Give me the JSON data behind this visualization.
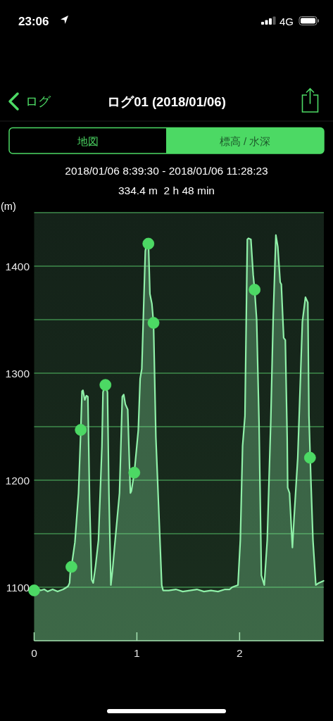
{
  "chart_data": {
    "type": "area",
    "title": "ログ01 (2018/01/06)",
    "subtitle": "2018/01/06 8:39:30 - 2018/01/06 11:28:23",
    "ylabel": "(m)",
    "annotations": [
      "334.4 m  2 h 48 min",
      "23:06",
      "4G",
      "ログ",
      "地図",
      "標高 / 水深"
    ],
    "xlim": [
      0,
      2.82
    ],
    "xticks": [
      0,
      1,
      2
    ],
    "ylim": [
      1050,
      1450
    ],
    "yticks": [
      1100,
      {
        "value": 1150,
        "label": null
      },
      1200,
      {
        "value": 1250,
        "label": null
      },
      1300,
      {
        "value": 1350,
        "label": null
      },
      1400,
      {
        "value": 1450,
        "label": null
      }
    ],
    "grid": "y",
    "line_style": "solid",
    "series": [
      {
        "color": "#8ff0a8",
        "x": [
          0,
          0.023,
          0.064,
          0.098,
          0.132,
          0.18,
          0.228,
          0.283,
          0.317,
          0.331,
          0.345,
          0.351,
          0.363,
          0.397,
          0.432,
          0.454,
          0.466,
          0.475,
          0.493,
          0.509,
          0.523,
          0.54,
          0.56,
          0.575,
          0.598,
          0.626,
          0.66,
          0.67,
          0.687,
          0.701,
          0.714,
          0.728,
          0.747,
          0.762,
          0.785,
          0.831,
          0.858,
          0.872,
          0.888,
          0.911,
          0.922,
          0.937,
          0.947,
          0.975,
          1.014,
          1.032,
          1.048,
          1.082,
          1.098,
          1.112,
          1.127,
          1.146,
          1.162,
          1.185,
          1.242,
          1.255,
          1.31,
          1.379,
          1.447,
          1.516,
          1.584,
          1.653,
          1.721,
          1.79,
          1.858,
          1.904,
          1.927,
          1.984,
          2.007,
          2.029,
          2.052,
          2.075,
          2.086,
          2.11,
          2.132,
          2.146,
          2.166,
          2.189,
          2.212,
          2.24,
          2.269,
          2.303,
          2.326,
          2.353,
          2.372,
          2.395,
          2.406,
          2.429,
          2.445,
          2.463,
          2.468,
          2.486,
          2.514,
          2.531,
          2.566,
          2.611,
          2.641,
          2.664,
          2.675,
          2.694,
          2.714,
          2.742,
          2.771,
          2.817
        ],
        "values": [
          1098,
          1099,
          1097,
          1098,
          1096,
          1098,
          1096,
          1098,
          1100,
          1101,
          1104,
          1113,
          1119,
          1142,
          1188,
          1247,
          1283,
          1284,
          1275,
          1279,
          1278,
          1180,
          1107,
          1104,
          1120,
          1144,
          1232,
          1282,
          1289,
          1288,
          1282,
          1188,
          1102,
          1115,
          1140,
          1188,
          1278,
          1280,
          1271,
          1266,
          1232,
          1188,
          1190,
          1207,
          1247,
          1295,
          1304,
          1414,
          1424,
          1424,
          1374,
          1365,
          1347,
          1240,
          1102,
          1097,
          1097,
          1098,
          1096,
          1097,
          1098,
          1096,
          1097,
          1096,
          1098,
          1098,
          1100,
          1102,
          1144,
          1232,
          1260,
          1425,
          1426,
          1425,
          1392,
          1378,
          1350,
          1254,
          1111,
          1102,
          1144,
          1254,
          1348,
          1429,
          1418,
          1385,
          1383,
          1333,
          1331,
          1240,
          1193,
          1188,
          1137,
          1166,
          1221,
          1348,
          1371,
          1366,
          1260,
          1200,
          1144,
          1102,
          1104,
          1106
        ]
      },
      {
        "type": "scatter",
        "color": "#4cd964",
        "marker": "circle",
        "x": [
          0,
          0.363,
          0.454,
          0.694,
          0.975,
          1.112,
          1.162,
          2.146,
          2.685
        ],
        "values": [
          1097,
          1119,
          1247,
          1289,
          1207,
          1421,
          1347,
          1378,
          1221
        ]
      }
    ]
  }
}
